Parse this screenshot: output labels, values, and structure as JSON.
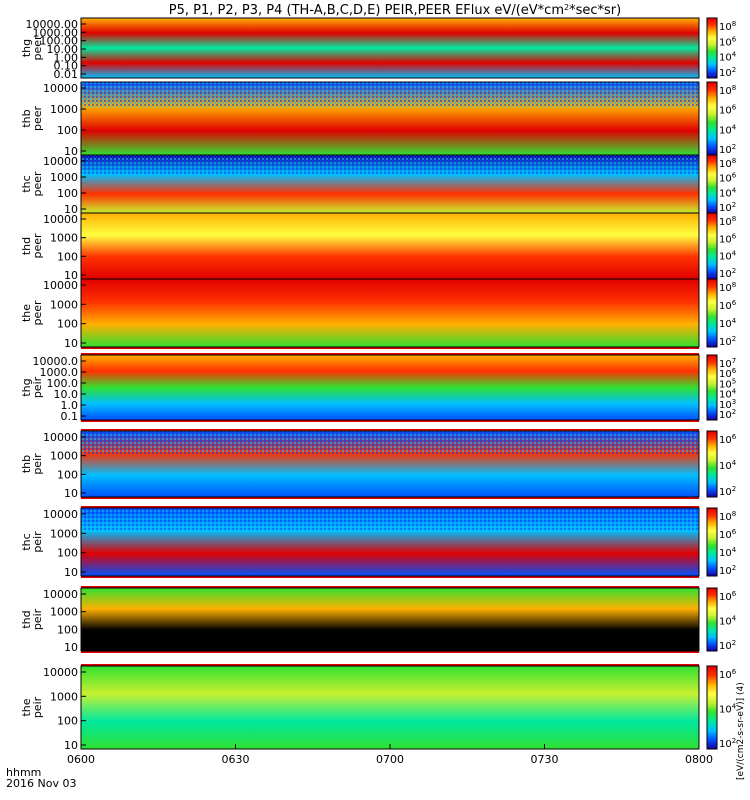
{
  "chart_data": {
    "type": "heatmap",
    "title": "P5, P1, P2, P3, P4 (TH-A,B,C,D,E) PEIR,PEER EFlux eV/(eV*cm",
    "title_sup": "2",
    "title_end": "*sec*sr)",
    "x_ticks": [
      "0600",
      "0630",
      "0700",
      "0730",
      "0800"
    ],
    "x_range": [
      "06:00",
      "08:00"
    ],
    "date_axis_label": "hhmm",
    "date": "2016 Nov 03",
    "colorbar_unit_vertical": "[eV/(cm2-s-sr-eV)] (4)",
    "panels": [
      {
        "label1": "thg",
        "label2": "peer",
        "yticks": [
          "10000.00",
          "1000.00",
          "100.00",
          "10.00",
          "1.00",
          "0.10",
          "0.01"
        ],
        "cbticks": [
          "10^8",
          "10^6",
          "10^4",
          "10^2"
        ]
      },
      {
        "label1": "thb",
        "label2": "peer",
        "yticks": [
          "10000",
          "1000",
          "100",
          "10"
        ],
        "cbticks": [
          "10^8",
          "10^6",
          "10^4",
          "10^2"
        ]
      },
      {
        "label1": "thc",
        "label2": "peer",
        "yticks": [
          "10000",
          "1000",
          "100",
          "10"
        ],
        "cbticks": [
          "10^8",
          "10^6",
          "10^4",
          "10^2"
        ]
      },
      {
        "label1": "thd",
        "label2": "peer",
        "yticks": [
          "10000",
          "1000",
          "100",
          "10"
        ],
        "cbticks": [
          "10^8",
          "10^6",
          "10^4",
          "10^2"
        ]
      },
      {
        "label1": "the",
        "label2": "peer",
        "yticks": [
          "10000",
          "1000",
          "100",
          "10"
        ],
        "cbticks": [
          "10^8",
          "10^6",
          "10^4",
          "10^2"
        ]
      },
      {
        "label1": "thg",
        "label2": "peir",
        "yticks": [
          "10000.0",
          "1000.0",
          "100.0",
          "10.0",
          "1.0",
          "0.1"
        ],
        "cbticks": [
          "10^7",
          "10^6",
          "10^5",
          "10^4",
          "10^3",
          "10^2"
        ]
      },
      {
        "label1": "thb",
        "label2": "peir",
        "yticks": [
          "10000",
          "1000",
          "100",
          "10"
        ],
        "cbticks": [
          "10^6",
          "10^4",
          "10^2"
        ]
      },
      {
        "label1": "thc",
        "label2": "peir",
        "yticks": [
          "10000",
          "1000",
          "100",
          "10"
        ],
        "cbticks": [
          "10^8",
          "10^6",
          "10^4",
          "10^2"
        ]
      },
      {
        "label1": "thd",
        "label2": "peir",
        "yticks": [
          "10000",
          "1000",
          "100",
          "10"
        ],
        "cbticks": [
          "10^6",
          "10^4",
          "10^2"
        ]
      },
      {
        "label1": "the",
        "label2": "peir",
        "yticks": [
          "10000",
          "1000",
          "100",
          "10"
        ],
        "cbticks": [
          "10^6",
          "10^4",
          "10^2"
        ]
      }
    ],
    "colormap": [
      "#1b00a0",
      "#0050ff",
      "#00c0ff",
      "#00e8a0",
      "#30e030",
      "#c8f030",
      "#ffff40",
      "#ffb000",
      "#ff3000",
      "#e00000"
    ]
  }
}
